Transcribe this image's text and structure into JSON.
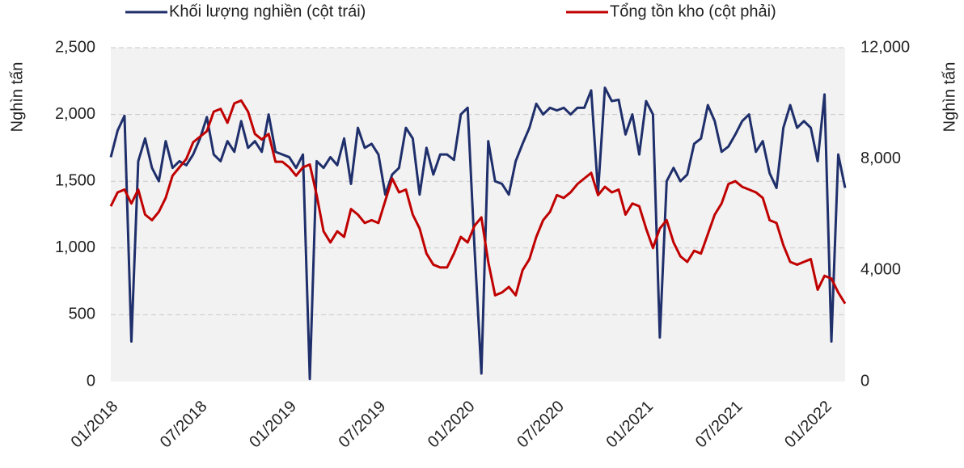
{
  "chart_data": {
    "type": "line",
    "ylabel": "Nghìn tấn",
    "y2label": "Nghìn tấn",
    "categories": [
      "01/2018",
      null,
      null,
      null,
      null,
      null,
      null,
      null,
      null,
      null,
      null,
      null,
      null,
      "07/2018",
      null,
      null,
      null,
      null,
      null,
      null,
      null,
      null,
      null,
      null,
      null,
      null,
      "01/2019",
      null,
      null,
      null,
      null,
      null,
      null,
      null,
      null,
      null,
      null,
      null,
      null,
      "07/2019",
      null,
      null,
      null,
      null,
      null,
      null,
      null,
      null,
      null,
      null,
      null,
      null,
      "01/2020",
      null,
      null,
      null,
      null,
      null,
      null,
      null,
      null,
      null,
      null,
      null,
      null,
      "07/2020",
      null,
      null,
      null,
      null,
      null,
      null,
      null,
      null,
      null,
      null,
      null,
      null,
      "01/2021",
      null,
      null,
      null,
      null,
      null,
      null,
      null,
      null,
      null,
      null,
      null,
      null,
      "07/2021",
      null,
      null,
      null,
      null,
      null,
      null,
      null,
      null,
      null,
      null,
      null,
      null,
      "01/2022",
      null,
      null,
      null
    ],
    "series": [
      {
        "name": "Khối lượng nghiền (cột trái)",
        "color": "#1f2f6b",
        "axis": "y",
        "values": [
          1680,
          1880,
          1990,
          300,
          1650,
          1820,
          1600,
          1500,
          1800,
          1600,
          1650,
          1620,
          1700,
          1820,
          1980,
          1700,
          1650,
          1800,
          1720,
          1950,
          1750,
          1800,
          1720,
          2000,
          1720,
          1700,
          1680,
          1600,
          1700,
          20,
          1650,
          1600,
          1680,
          1620,
          1820,
          1480,
          1900,
          1750,
          1780,
          1700,
          1400,
          1550,
          1600,
          1900,
          1820,
          1400,
          1750,
          1550,
          1700,
          1700,
          1660,
          2000,
          2050,
          1000,
          60,
          1800,
          1500,
          1480,
          1400,
          1650,
          1780,
          1900,
          2080,
          2000,
          2050,
          2030,
          2050,
          2000,
          2050,
          2050,
          2180,
          1420,
          2200,
          2100,
          2110,
          1850,
          2000,
          1700,
          2100,
          2000,
          330,
          1500,
          1600,
          1500,
          1550,
          1780,
          1820,
          2070,
          1950,
          1720,
          1760,
          1850,
          1950,
          2000,
          1720,
          1800,
          1560,
          1450,
          1900,
          2070,
          1900,
          1950,
          1900,
          1650,
          2150,
          300,
          1700,
          1450
        ]
      },
      {
        "name": "Tổng tồn kho (cột phải)",
        "color": "#c00000",
        "axis": "y2",
        "values": [
          6300,
          6800,
          6900,
          6400,
          6900,
          6000,
          5800,
          6100,
          6600,
          7400,
          7700,
          8000,
          8600,
          8800,
          9000,
          9700,
          9800,
          9300,
          10000,
          10100,
          9700,
          8900,
          8700,
          8900,
          7900,
          7900,
          7700,
          7400,
          7700,
          7800,
          6700,
          5400,
          5000,
          5400,
          5200,
          6200,
          6000,
          5700,
          5800,
          5700,
          6500,
          7300,
          6800,
          6900,
          6000,
          5500,
          4600,
          4200,
          4100,
          4100,
          4600,
          5200,
          5000,
          5600,
          5900,
          4300,
          3100,
          3200,
          3400,
          3100,
          4000,
          4400,
          5200,
          5800,
          6100,
          6700,
          6600,
          6800,
          7100,
          7300,
          7500,
          6700,
          7000,
          6800,
          6900,
          6000,
          6400,
          6300,
          5500,
          4800,
          5500,
          5800,
          5000,
          4500,
          4300,
          4700,
          4600,
          5300,
          6000,
          6400,
          7100,
          7200,
          7000,
          6900,
          6800,
          6600,
          5800,
          5700,
          4900,
          4300,
          4200,
          4300,
          4400,
          3300,
          3800,
          3700,
          3200,
          2800
        ]
      }
    ],
    "ylim": [
      0,
      2500
    ],
    "yticks": [
      0,
      500,
      {
        "value": 1000,
        "label": "1,000"
      },
      {
        "value": 1500,
        "label": "1,500"
      },
      {
        "value": 2000,
        "label": "2,000"
      },
      {
        "value": 2500,
        "label": "2,500"
      }
    ],
    "y2lim": [
      0,
      12000
    ],
    "y2ticks": [
      0,
      {
        "value": 4000,
        "label": "4,000"
      },
      {
        "value": 8000,
        "label": "8,000"
      },
      {
        "value": 12000,
        "label": "12,000"
      }
    ],
    "grid": true,
    "legend": "top"
  }
}
